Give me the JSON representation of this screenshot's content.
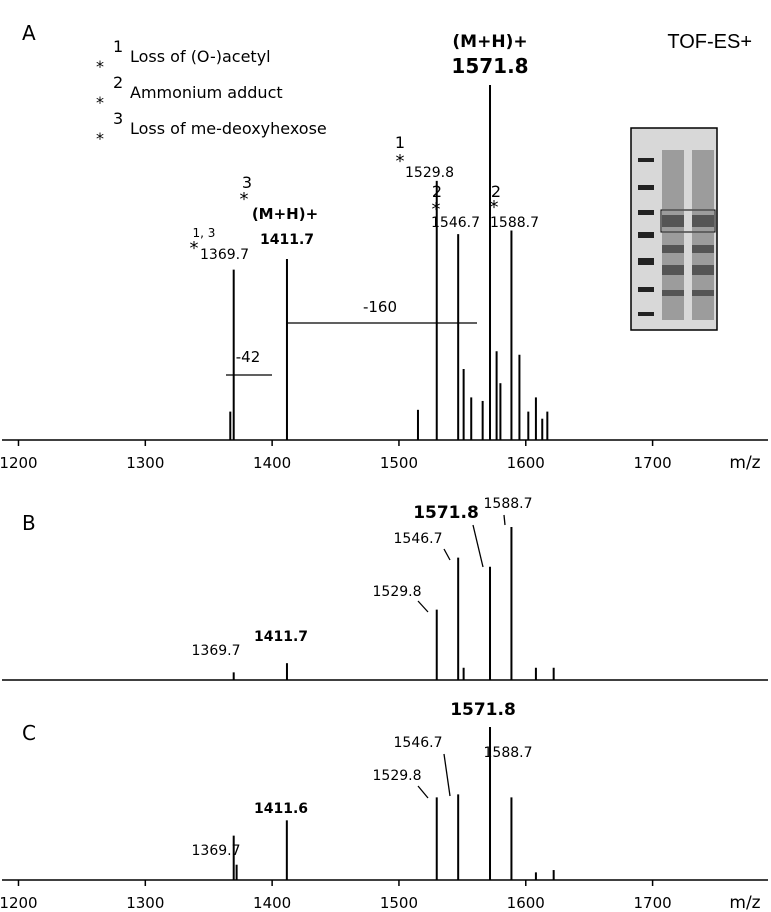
{
  "chart_data": [
    {
      "type": "stem",
      "panel": "A",
      "title": "TOF-ES+",
      "x_label": "m/z",
      "color": "#000000",
      "x": [
        1367,
        1369.7,
        1411.7,
        1515,
        1529.8,
        1546.7,
        1551,
        1557,
        1566,
        1571.8,
        1577,
        1580,
        1588.7,
        1595,
        1602,
        1608,
        1613,
        1617
      ],
      "values": [
        8,
        48,
        51,
        8.5,
        73,
        58,
        20,
        12,
        11,
        100,
        25,
        16,
        59,
        24,
        8,
        12,
        6,
        8
      ],
      "xlim": [
        1187,
        1791
      ],
      "xticks": [
        1200,
        1300,
        1400,
        1500,
        1600,
        1700
      ],
      "ylim": [
        0,
        100
      ],
      "notes": [
        {
          "mark": "*",
          "number": "1",
          "text": "Loss of (O-)acetyl"
        },
        {
          "mark": "*",
          "number": "2",
          "text": "Ammonium adduct"
        },
        {
          "mark": "*",
          "number": "3",
          "text": "Loss of me-deoxyhexose"
        }
      ],
      "annotations": [
        "(M+H)+",
        "1571.8",
        "1",
        "*",
        "1529.8",
        "2",
        "*",
        "1546.7",
        "2",
        "*",
        "1588.7",
        "3",
        "*",
        "(M+H)+",
        "1411.7",
        "1, 3",
        "*",
        "1369.7",
        "-160",
        "-42"
      ]
    },
    {
      "type": "stem",
      "panel": "B",
      "color": "#000000",
      "x": [
        1369.7,
        1411.7,
        1529.8,
        1546.7,
        1551,
        1571.8,
        1588.7,
        1608,
        1622
      ],
      "values": [
        5,
        11,
        46,
        80,
        8,
        74,
        100,
        8,
        8
      ],
      "xlim": [
        1187,
        1791
      ],
      "ylim": [
        0,
        100
      ],
      "annotations": [
        "1369.7",
        "1411.7",
        "1529.8",
        "1546.7",
        "1571.8",
        "1588.7"
      ]
    },
    {
      "type": "stem",
      "panel": "C",
      "x_label": "m/z",
      "color": "#000000",
      "x": [
        1369.7,
        1372,
        1411.6,
        1529.8,
        1546.7,
        1571.8,
        1588.7,
        1608,
        1622
      ],
      "values": [
        29,
        10,
        39,
        54,
        56,
        100,
        54,
        5,
        6.5
      ],
      "xlim": [
        1187,
        1791
      ],
      "xticks": [
        1200,
        1300,
        1400,
        1500,
        1600,
        1700
      ],
      "ylim": [
        0,
        100
      ],
      "annotations": [
        "1369.7",
        "1411.6",
        "1529.8",
        "1546.7",
        "1571.8",
        "1588.7"
      ]
    }
  ]
}
